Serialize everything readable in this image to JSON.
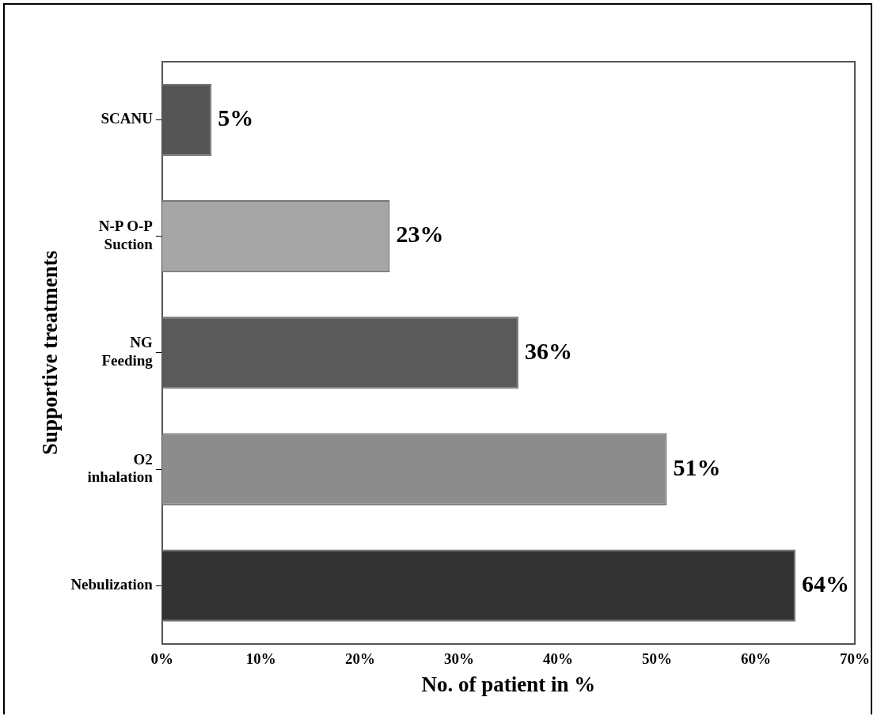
{
  "chart_data": {
    "type": "bar",
    "orientation": "horizontal",
    "categories": [
      "SCANU",
      "N-P O-P\nSuction",
      "NG\nFeeding",
      "O2\ninhalation",
      "Nebulization"
    ],
    "values": [
      5,
      23,
      36,
      51,
      64
    ],
    "colors": [
      "#555555",
      "#a6a6a6",
      "#5a5a5a",
      "#8c8c8c",
      "#333333"
    ],
    "value_labels": [
      "5%",
      "23%",
      "36%",
      "51%",
      "64%"
    ],
    "xlim": [
      0,
      70
    ],
    "xticks": [
      {
        "value": 0,
        "label": "0%"
      },
      {
        "value": 10,
        "label": "10%"
      },
      {
        "value": 20,
        "label": "20%"
      },
      {
        "value": 30,
        "label": "30%"
      },
      {
        "value": 40,
        "label": "40%"
      },
      {
        "value": 50,
        "label": "50%"
      },
      {
        "value": 60,
        "label": "60%"
      },
      {
        "value": 70,
        "label": "70%"
      }
    ],
    "xlabel": "No. of patient in %",
    "ylabel": "Supportive treatments",
    "grid": false,
    "legend": false
  }
}
